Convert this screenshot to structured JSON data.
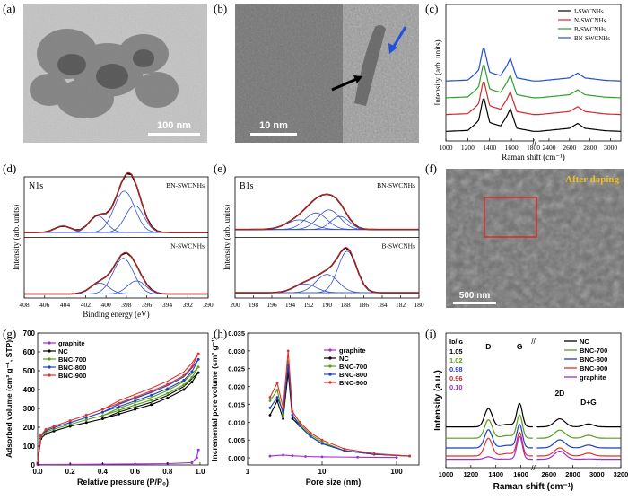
{
  "panel_labels": {
    "a": "(a)",
    "b": "(b)",
    "c": "(c)",
    "d": "(d)",
    "e": "(e)",
    "f": "(f)",
    "g": "(g)",
    "h": "(h)",
    "i": "(i)"
  },
  "image_panels": {
    "a": {
      "scale_bar": "100 nm"
    },
    "b": {
      "scale_bar": "10 nm"
    },
    "f": {
      "scale_bar": "500 nm",
      "caption": "After doping"
    }
  },
  "chart_data": [
    {
      "panel": "c",
      "type": "line",
      "xlabel": "Raman shift (cm⁻¹)",
      "ylabel": "Intensity (arb. units)",
      "xticks": [
        "1000",
        "1200",
        "1400",
        "1600",
        "1800",
        "2400",
        "2600",
        "2800",
        "3000"
      ],
      "xlim": [
        1000,
        3100
      ],
      "axis_break": [
        1800,
        2300
      ],
      "legend_position": "top-right",
      "series": [
        {
          "name": "I-SWCNHs",
          "color": "#000000",
          "offset": 0.0,
          "points": [
            [
              1000,
              0.02
            ],
            [
              1200,
              0.05
            ],
            [
              1300,
              0.35
            ],
            [
              1345,
              1.0
            ],
            [
              1400,
              0.3
            ],
            [
              1500,
              0.2
            ],
            [
              1590,
              0.68
            ],
            [
              1650,
              0.12
            ],
            [
              1800,
              0.02
            ],
            [
              2300,
              0.02
            ],
            [
              2600,
              0.12
            ],
            [
              2680,
              0.28
            ],
            [
              2750,
              0.12
            ],
            [
              2950,
              0.04
            ],
            [
              3100,
              0.02
            ]
          ]
        },
        {
          "name": "N-SWCNHs",
          "color": "#d62728",
          "offset": 0.55,
          "points": [
            [
              1000,
              0.02
            ],
            [
              1200,
              0.05
            ],
            [
              1300,
              0.35
            ],
            [
              1345,
              1.0
            ],
            [
              1400,
              0.3
            ],
            [
              1500,
              0.2
            ],
            [
              1590,
              0.68
            ],
            [
              1650,
              0.12
            ],
            [
              1800,
              0.02
            ],
            [
              2300,
              0.02
            ],
            [
              2600,
              0.12
            ],
            [
              2680,
              0.28
            ],
            [
              2750,
              0.12
            ],
            [
              2950,
              0.04
            ],
            [
              3100,
              0.02
            ]
          ]
        },
        {
          "name": "B-SWCNHs",
          "color": "#2ca02c",
          "offset": 1.1,
          "points": [
            [
              1000,
              0.02
            ],
            [
              1200,
              0.05
            ],
            [
              1300,
              0.35
            ],
            [
              1345,
              1.0
            ],
            [
              1400,
              0.3
            ],
            [
              1500,
              0.2
            ],
            [
              1590,
              0.68
            ],
            [
              1650,
              0.12
            ],
            [
              1800,
              0.02
            ],
            [
              2300,
              0.02
            ],
            [
              2600,
              0.12
            ],
            [
              2680,
              0.28
            ],
            [
              2750,
              0.12
            ],
            [
              2950,
              0.04
            ],
            [
              3100,
              0.02
            ]
          ]
        },
        {
          "name": "BN-SWCNHs",
          "color": "#1f4fd8",
          "offset": 1.65,
          "points": [
            [
              1000,
              0.02
            ],
            [
              1200,
              0.05
            ],
            [
              1300,
              0.35
            ],
            [
              1345,
              1.0
            ],
            [
              1400,
              0.3
            ],
            [
              1500,
              0.2
            ],
            [
              1590,
              0.68
            ],
            [
              1650,
              0.12
            ],
            [
              1800,
              0.02
            ],
            [
              2300,
              0.02
            ],
            [
              2600,
              0.12
            ],
            [
              2680,
              0.28
            ],
            [
              2750,
              0.12
            ],
            [
              2950,
              0.04
            ],
            [
              3100,
              0.02
            ]
          ]
        }
      ]
    },
    {
      "panel": "d",
      "type": "line",
      "title": "N1s",
      "xlabel": "Binding energy (eV)",
      "ylabel": "Intensity (arb. units)",
      "xticks": [
        "408",
        "406",
        "404",
        "402",
        "400",
        "398",
        "396",
        "394",
        "392",
        "390"
      ],
      "xlim": [
        408,
        390
      ],
      "reversed_x": true,
      "subplots": [
        {
          "label": "BN-SWCNHs",
          "components": [
            [
              400.8,
              0.85,
              0.38
            ],
            [
              398.2,
              1.0,
              0.95
            ],
            [
              397.2,
              0.9,
              0.62
            ],
            [
              404.2,
              0.8,
              0.15
            ]
          ],
          "baseline": 0.05
        },
        {
          "label": "N-SWCNHs",
          "components": [
            [
              400.6,
              0.9,
              0.25
            ],
            [
              398.3,
              1.0,
              0.82
            ],
            [
              397.0,
              0.9,
              0.3
            ]
          ],
          "baseline": 0.03
        }
      ]
    },
    {
      "panel": "e",
      "type": "line",
      "title": "B1s",
      "xlabel": "",
      "ylabel": "Intensity (arb. units)",
      "xticks": [
        "200",
        "198",
        "196",
        "194",
        "192",
        "190",
        "188",
        "186",
        "184",
        "182",
        "180"
      ],
      "xlim": [
        200,
        180
      ],
      "reversed_x": true,
      "subplots": [
        {
          "label": "BN-SWCNHs",
          "components": [
            [
              193.0,
              1.4,
              0.22
            ],
            [
              191.2,
              1.2,
              0.38
            ],
            [
              189.8,
              1.2,
              0.45
            ],
            [
              188.6,
              1.0,
              0.3
            ]
          ],
          "baseline": 0.12
        },
        {
          "label": "B-SWCNHs",
          "components": [
            [
              192.4,
              1.2,
              0.2
            ],
            [
              190.0,
              1.2,
              0.42
            ],
            [
              187.8,
              1.0,
              0.95
            ]
          ],
          "baseline": 0.06
        }
      ]
    },
    {
      "panel": "g",
      "type": "line",
      "xlabel": "Relative pressure (P/P₀)",
      "ylabel": "Adsorbed volume (cm³ g⁻¹, STP)",
      "xticks": [
        "0.0",
        "0.2",
        "0.4",
        "0.6",
        "0.8",
        "1.0"
      ],
      "xlim": [
        0,
        1.05
      ],
      "yticks": [
        "0",
        "100",
        "200",
        "300",
        "400",
        "500",
        "600",
        "700"
      ],
      "ylim": [
        0,
        700
      ],
      "legend_position": "top-left",
      "series": [
        {
          "name": "graphite",
          "color": "#9b30d8",
          "points": [
            [
              0,
              2
            ],
            [
              0.2,
              3
            ],
            [
              0.4,
              4
            ],
            [
              0.6,
              5
            ],
            [
              0.8,
              7
            ],
            [
              0.95,
              12
            ],
            [
              0.98,
              40
            ],
            [
              0.99,
              80
            ]
          ]
        },
        {
          "name": "NC",
          "color": "#000000",
          "points": [
            [
              0,
              10
            ],
            [
              0.02,
              140
            ],
            [
              0.05,
              165
            ],
            [
              0.1,
              180
            ],
            [
              0.2,
              205
            ],
            [
              0.3,
              225
            ],
            [
              0.4,
              245
            ],
            [
              0.5,
              270
            ],
            [
              0.6,
              295
            ],
            [
              0.7,
              320
            ],
            [
              0.8,
              355
            ],
            [
              0.9,
              400
            ],
            [
              0.95,
              440
            ],
            [
              0.99,
              490
            ]
          ]
        },
        {
          "name": "BNC-700",
          "color": "#5a9e1a",
          "points": [
            [
              0,
              10
            ],
            [
              0.02,
              150
            ],
            [
              0.05,
              175
            ],
            [
              0.1,
              190
            ],
            [
              0.2,
              215
            ],
            [
              0.3,
              240
            ],
            [
              0.4,
              262
            ],
            [
              0.5,
              290
            ],
            [
              0.6,
              318
            ],
            [
              0.7,
              345
            ],
            [
              0.8,
              380
            ],
            [
              0.9,
              425
            ],
            [
              0.95,
              465
            ],
            [
              0.99,
              520
            ]
          ]
        },
        {
          "name": "BNC-800",
          "color": "#1f3fbf",
          "points": [
            [
              0,
              10
            ],
            [
              0.02,
              155
            ],
            [
              0.05,
              182
            ],
            [
              0.1,
              198
            ],
            [
              0.2,
              225
            ],
            [
              0.3,
              252
            ],
            [
              0.4,
              280
            ],
            [
              0.5,
              310
            ],
            [
              0.6,
              340
            ],
            [
              0.7,
              370
            ],
            [
              0.8,
              405
            ],
            [
              0.9,
              450
            ],
            [
              0.95,
              495
            ],
            [
              0.99,
              560
            ]
          ]
        },
        {
          "name": "BNC-900",
          "color": "#e03030",
          "points": [
            [
              0,
              10
            ],
            [
              0.02,
              158
            ],
            [
              0.05,
              188
            ],
            [
              0.1,
              205
            ],
            [
              0.2,
              235
            ],
            [
              0.3,
              265
            ],
            [
              0.4,
              295
            ],
            [
              0.5,
              328
            ],
            [
              0.6,
              360
            ],
            [
              0.7,
              392
            ],
            [
              0.8,
              428
            ],
            [
              0.9,
              475
            ],
            [
              0.95,
              520
            ],
            [
              0.99,
              590
            ]
          ]
        }
      ]
    },
    {
      "panel": "h",
      "type": "line",
      "xlabel": "Pore size (nm)",
      "ylabel": "Incremental pore volume (cm³ g⁻¹)",
      "x_scale": "log",
      "xlim": [
        1,
        200
      ],
      "xticks": [
        "1",
        "10",
        "100"
      ],
      "yticks": [
        "0.000",
        "0.005",
        "0.010",
        "0.015",
        "0.020",
        "0.025",
        "0.030",
        "0.035"
      ],
      "ylim": [
        -0.002,
        0.035
      ],
      "legend_position": "top-right",
      "series": [
        {
          "name": "graphite",
          "color": "#9b30d8",
          "points": [
            [
              2,
              0.0005
            ],
            [
              3,
              0.0008
            ],
            [
              4,
              0.0006
            ],
            [
              6,
              0.0004
            ],
            [
              10,
              0.0003
            ],
            [
              30,
              0.0002
            ],
            [
              100,
              0.0001
            ]
          ]
        },
        {
          "name": "NC",
          "color": "#000000",
          "points": [
            [
              2,
              0.012
            ],
            [
              2.5,
              0.016
            ],
            [
              3,
              0.011
            ],
            [
              3.5,
              0.024
            ],
            [
              4,
              0.011
            ],
            [
              5,
              0.009
            ],
            [
              7,
              0.006
            ],
            [
              10,
              0.004
            ],
            [
              20,
              0.002
            ],
            [
              50,
              0.001
            ],
            [
              150,
              0.0005
            ]
          ]
        },
        {
          "name": "BNC-700",
          "color": "#5a9e1a",
          "points": [
            [
              2,
              0.016
            ],
            [
              2.5,
              0.019
            ],
            [
              3,
              0.012
            ],
            [
              3.5,
              0.027
            ],
            [
              4,
              0.012
            ],
            [
              5,
              0.0095
            ],
            [
              7,
              0.0065
            ],
            [
              10,
              0.0045
            ],
            [
              20,
              0.002
            ],
            [
              50,
              0.001
            ],
            [
              150,
              0.0005
            ]
          ]
        },
        {
          "name": "BNC-800",
          "color": "#1f3fbf",
          "points": [
            [
              2,
              0.014
            ],
            [
              2.5,
              0.017
            ],
            [
              3,
              0.013
            ],
            [
              3.5,
              0.026
            ],
            [
              4,
              0.012
            ],
            [
              5,
              0.009
            ],
            [
              7,
              0.006
            ],
            [
              10,
              0.004
            ],
            [
              20,
              0.002
            ],
            [
              50,
              0.001
            ],
            [
              150,
              0.0005
            ]
          ]
        },
        {
          "name": "BNC-900",
          "color": "#e03030",
          "points": [
            [
              2,
              0.017
            ],
            [
              2.5,
              0.021
            ],
            [
              3,
              0.014
            ],
            [
              3.5,
              0.03
            ],
            [
              4,
              0.013
            ],
            [
              5,
              0.01
            ],
            [
              7,
              0.007
            ],
            [
              10,
              0.005
            ],
            [
              20,
              0.0025
            ],
            [
              50,
              0.0012
            ],
            [
              150,
              0.0005
            ]
          ]
        }
      ]
    },
    {
      "panel": "i",
      "type": "line",
      "xlabel": "Raman shift (cm⁻¹)",
      "ylabel": "Intensity (a.u.)",
      "xticks": [
        "1000",
        "1200",
        "1400",
        "1600",
        "2600",
        "2800",
        "3000",
        "3200"
      ],
      "xlim": [
        1000,
        3200
      ],
      "axis_break": [
        1700,
        2500
      ],
      "peak_labels": [
        "D",
        "G",
        "2D",
        "D+G"
      ],
      "ratio_header": "Iᴅ/Iɢ",
      "ratios": [
        {
          "value": "1.05",
          "color": "#000000"
        },
        {
          "value": "1.02",
          "color": "#5a9e1a"
        },
        {
          "value": "0.98",
          "color": "#1f3fbf"
        },
        {
          "value": "0.96",
          "color": "#c0282a"
        },
        {
          "value": "0.10",
          "color": "#9b30d8"
        }
      ],
      "legend_position": "top-right",
      "series": [
        {
          "name": "NC",
          "color": "#000000",
          "offset": 0.9,
          "d_height": 1.0
        },
        {
          "name": "BNC-700",
          "color": "#5a9e1a",
          "offset": 0.55,
          "d_height": 1.0
        },
        {
          "name": "BNC-800",
          "color": "#1f3fbf",
          "offset": 0.25,
          "d_height": 0.98
        },
        {
          "name": "BNC-900",
          "color": "#e03030",
          "offset": 0.0,
          "d_height": 0.96
        },
        {
          "name": "graphite",
          "color": "#9b30d8",
          "offset": -0.1,
          "d_height": 0.1
        }
      ]
    }
  ]
}
